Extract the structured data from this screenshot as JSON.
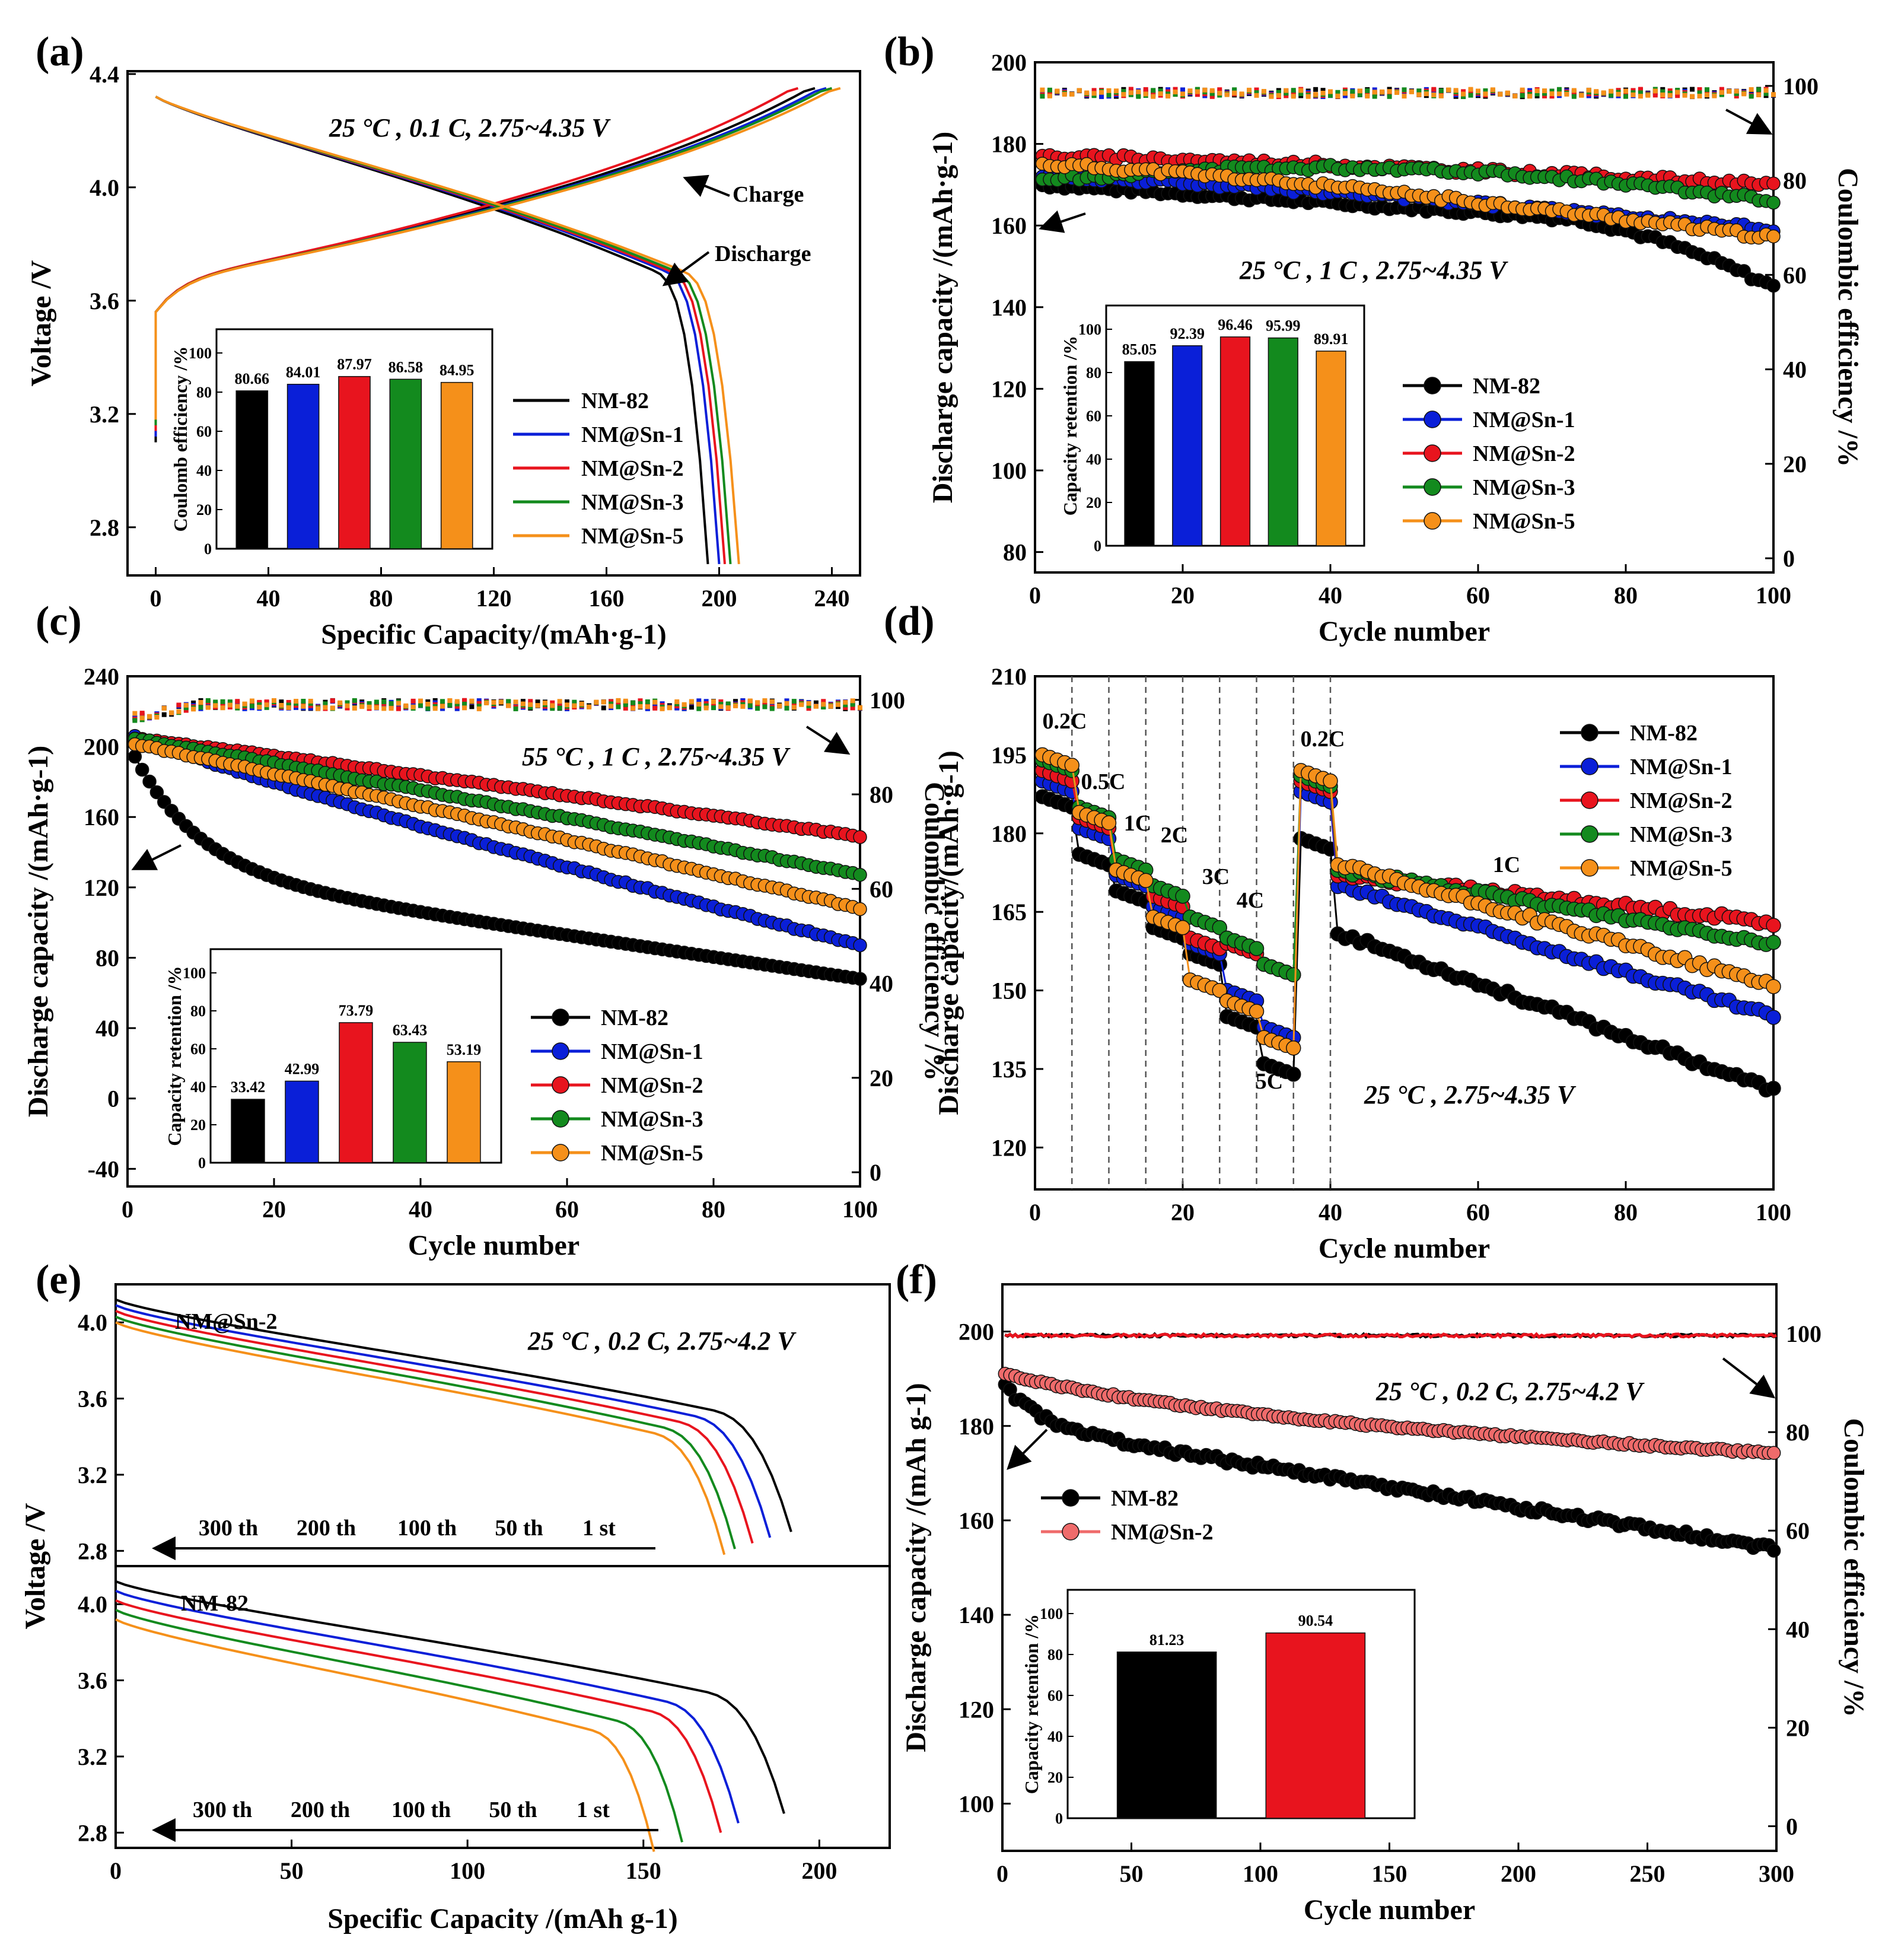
{
  "colors": {
    "NM-82": "#000000",
    "NM@Sn-1": "#0a1fd8",
    "NM@Sn-2": "#e8141e",
    "NM@Sn-3": "#138a1e",
    "NM@Sn-5": "#f5901a",
    "NM@Sn-2-light": "#ef6b6b"
  },
  "chart_data": [
    {
      "panel": "(a)",
      "type": "line",
      "xlabel": "Specific Capacity/(mAh·g-1)",
      "ylabel": "Voltage /V",
      "xlim": [
        -10,
        250
      ],
      "ylim": [
        2.63,
        4.41
      ],
      "xticks": [
        "0",
        "40",
        "80",
        "120",
        "160",
        "200",
        "240"
      ],
      "yticks": [
        "2.8",
        "3.2",
        "3.6",
        "4.0",
        "4.4"
      ],
      "annotation": "25 °C , 0.1 C, 2.75~4.35 V",
      "labels": {
        "charge": "Charge",
        "discharge": "Discharge"
      },
      "series": [
        {
          "name": "NM-82",
          "charge_end": 234,
          "discharge_end": 196
        },
        {
          "name": "NM@Sn-1",
          "charge_end": 238,
          "discharge_end": 200
        },
        {
          "name": "NM@Sn-2",
          "charge_end": 228,
          "discharge_end": 202
        },
        {
          "name": "NM@Sn-3",
          "charge_end": 240,
          "discharge_end": 204
        },
        {
          "name": "NM@Sn-5",
          "charge_end": 243,
          "discharge_end": 207
        }
      ],
      "inset": {
        "ylabel": "Coulomb efficiency /%",
        "yticks": [
          "0",
          "20",
          "40",
          "60",
          "80",
          "100"
        ],
        "ylim": [
          0,
          100
        ],
        "values": [
          80.66,
          84.01,
          87.97,
          86.58,
          84.95
        ],
        "labels": [
          "80.66",
          "84.01",
          "87.97",
          "86.58",
          "84.95"
        ]
      }
    },
    {
      "panel": "(b)",
      "type": "line",
      "xlabel": "Cycle number",
      "ylabel": "Discharge capacity /(mAh·g-1)",
      "y2label": "Coulombic efficiency /%",
      "xlim": [
        0,
        100
      ],
      "ylim": [
        75,
        200
      ],
      "y2lim": [
        -3,
        105
      ],
      "xticks": [
        "0",
        "20",
        "40",
        "60",
        "80",
        "100"
      ],
      "yticks": [
        "80",
        "100",
        "120",
        "140",
        "160",
        "180",
        "200"
      ],
      "y2ticks": [
        "0",
        "20",
        "40",
        "60",
        "80",
        "100"
      ],
      "annotation": "25 °C , 1 C , 2.75~4.35 V",
      "series": [
        {
          "name": "NM-82",
          "start": 170,
          "end": 145
        },
        {
          "name": "NM@Sn-1",
          "start": 172,
          "end": 159
        },
        {
          "name": "NM@Sn-2",
          "start": 177,
          "end": 170
        },
        {
          "name": "NM@Sn-3",
          "start": 171,
          "end": 166
        },
        {
          "name": "NM@Sn-5",
          "start": 175,
          "end": 157
        }
      ],
      "inset": {
        "ylabel": "Capacity retention /%",
        "yticks": [
          "0",
          "20",
          "40",
          "60",
          "80",
          "100"
        ],
        "ylim": [
          0,
          100
        ],
        "values": [
          85.05,
          92.39,
          96.46,
          95.99,
          89.91
        ],
        "labels": [
          "85.05",
          "92.39",
          "96.46",
          "95.99",
          "89.91"
        ]
      }
    },
    {
      "panel": "(c)",
      "type": "line",
      "xlabel": "Cycle number",
      "ylabel": "Discharge capacity /(mAh·g-1)",
      "y2label": "Coulombic efficiency /%",
      "xlim": [
        0,
        100
      ],
      "ylim": [
        -50,
        240
      ],
      "y2lim": [
        -3,
        105
      ],
      "xticks": [
        "0",
        "20",
        "40",
        "60",
        "80",
        "100"
      ],
      "yticks": [
        "-40",
        "0",
        "40",
        "80",
        "120",
        "160",
        "200",
        "240"
      ],
      "y2ticks": [
        "0",
        "20",
        "40",
        "60",
        "80",
        "100"
      ],
      "annotation": "55 °C , 1 C , 2.75~4.35 V",
      "series": [
        {
          "name": "NM-82",
          "start": 200,
          "end": 68
        },
        {
          "name": "NM@Sn-1",
          "start": 208,
          "end": 87
        },
        {
          "name": "NM@Sn-2",
          "start": 205,
          "end": 149
        },
        {
          "name": "NM@Sn-3",
          "start": 205,
          "end": 127
        },
        {
          "name": "NM@Sn-5",
          "start": 202,
          "end": 108
        }
      ],
      "inset": {
        "ylabel": "Capacity retention /%",
        "yticks": [
          "0",
          "20",
          "40",
          "60",
          "80",
          "100"
        ],
        "ylim": [
          0,
          100
        ],
        "values": [
          33.42,
          42.99,
          73.79,
          63.43,
          53.19
        ],
        "labels": [
          "33.42",
          "42.99",
          "73.79",
          "63.43",
          "53.19"
        ]
      }
    },
    {
      "panel": "(d)",
      "type": "line",
      "xlabel": "Cycle number",
      "ylabel": "Discharge capacity/(mAh·g-1)",
      "xlim": [
        0,
        100
      ],
      "ylim": [
        112,
        210
      ],
      "xticks": [
        "0",
        "20",
        "40",
        "60",
        "80",
        "100"
      ],
      "yticks": [
        "120",
        "135",
        "150",
        "165",
        "180",
        "195",
        "210"
      ],
      "annotation": "25 °C , 2.75~4.35 V",
      "rate_labels": [
        "0.2C",
        "0.5C",
        "1C",
        "2C",
        "3C",
        "4C",
        "5C",
        "0.2C",
        "1C"
      ],
      "steps": [
        {
          "name": "NM-82",
          "levels": [
            187,
            176,
            169,
            162,
            157,
            145,
            136,
            179
          ],
          "end": 131
        },
        {
          "name": "NM@Sn-1",
          "levels": [
            190,
            181,
            172,
            166,
            159,
            150,
            143,
            188
          ],
          "end": 145
        },
        {
          "name": "NM@Sn-2",
          "levels": [
            192,
            183,
            173,
            168,
            160,
            159,
            155,
            190
          ],
          "end": 163
        },
        {
          "name": "NM@Sn-3",
          "levels": [
            194,
            185,
            175,
            170,
            164,
            160,
            155,
            191
          ],
          "end": 159
        },
        {
          "name": "NM@Sn-5",
          "levels": [
            195,
            184,
            173,
            164,
            152,
            148,
            141,
            192
          ],
          "end": 151
        }
      ]
    },
    {
      "panel": "(e)",
      "type": "line",
      "xlabel": "Specific Capacity /(mAh g-1)",
      "ylabel": "Voltage /V",
      "xlim": [
        0,
        220
      ],
      "ylim": [
        2.72,
        4.2
      ],
      "xticks": [
        "0",
        "50",
        "100",
        "150",
        "200"
      ],
      "yticks": [
        "2.8",
        "3.2",
        "3.6",
        "4.0"
      ],
      "annotation": "25 °C , 0.2 C, 2.75~4.2 V",
      "cycle_labels": [
        "300 th",
        "200 th",
        "100 th",
        "50 th",
        "1 st"
      ],
      "top": {
        "title": "NM@Sn-2",
        "ends": [
          192,
          186,
          181,
          176,
          173
        ]
      },
      "bottom": {
        "title": "NM-82",
        "ends": [
          190,
          177,
          172,
          161,
          153
        ]
      }
    },
    {
      "panel": "(f)",
      "type": "line",
      "xlabel": "Cycle number",
      "ylabel": "Discharge capacity /(mAh g-1)",
      "y2label": "Coulombic efficiency /%",
      "xlim": [
        0,
        300
      ],
      "ylim": [
        90,
        210
      ],
      "y2lim": [
        -5,
        110
      ],
      "xticks": [
        "0",
        "50",
        "100",
        "150",
        "200",
        "250",
        "300"
      ],
      "yticks": [
        "100",
        "120",
        "140",
        "160",
        "180",
        "200"
      ],
      "y2ticks": [
        "0",
        "20",
        "40",
        "60",
        "80",
        "100"
      ],
      "annotation": "25 °C , 0.2 C, 2.75~4.2 V",
      "series": [
        {
          "name": "NM-82",
          "start": 189,
          "end": 154
        },
        {
          "name": "NM@Sn-2",
          "start": 191,
          "end": 174
        }
      ],
      "inset": {
        "ylabel": "Capacity retention /%",
        "yticks": [
          "0",
          "20",
          "40",
          "60",
          "80",
          "100"
        ],
        "ylim": [
          0,
          100
        ],
        "values": [
          81.23,
          90.54
        ],
        "labels": [
          "81.23",
          "90.54"
        ]
      }
    }
  ]
}
